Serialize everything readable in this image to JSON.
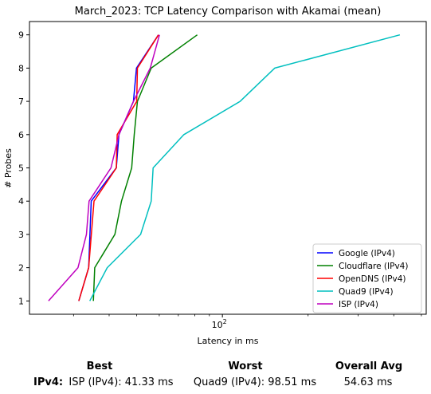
{
  "chart_data": {
    "type": "line",
    "title": "March_2023: TCP Latency Comparison with Akamai (mean)",
    "xlabel": "Latency in ms",
    "ylabel": "# Probes",
    "xscale": "log",
    "xlim": [
      21,
      520
    ],
    "ylim": [
      0.6,
      9.4
    ],
    "xticks": [
      {
        "value": 100,
        "label": "10^2"
      }
    ],
    "yticks": [
      1,
      2,
      3,
      4,
      5,
      6,
      7,
      8,
      9
    ],
    "legend_position": "lower-right",
    "series": [
      {
        "name": "Google (IPv4)",
        "color": "#0000ff",
        "x": [
          31.3,
          33.9,
          34.6,
          42.4,
          43.3,
          48.7,
          49.9,
          59.6
        ],
        "y": [
          1,
          2,
          4,
          5,
          6,
          7,
          8,
          9
        ]
      },
      {
        "name": "Cloudflare (IPv4)",
        "color": "#008000",
        "x": [
          35.2,
          35.6,
          41.9,
          44.2,
          48.0,
          49.0,
          50.3,
          56.2,
          81.6
        ],
        "y": [
          1,
          2,
          3,
          4,
          5,
          6,
          7,
          8,
          9
        ]
      },
      {
        "name": "OpenDNS (IPv4)",
        "color": "#ff0000",
        "x": [
          31.3,
          33.9,
          35.4,
          42.4,
          42.7,
          50.0,
          50.3,
          59.6
        ],
        "y": [
          1,
          2,
          4,
          5,
          6,
          7,
          8,
          9
        ]
      },
      {
        "name": "Quad9 (IPv4)",
        "color": "#00bfbf",
        "x": [
          34.2,
          39.4,
          51.6,
          56.2,
          57.1,
          73.2,
          115.4,
          152.6,
          420.0
        ],
        "y": [
          1,
          2,
          3,
          4,
          5,
          6,
          7,
          8,
          9
        ]
      },
      {
        "name": "ISP (IPv4)",
        "color": "#bf00bf",
        "x": [
          24.5,
          31.1,
          33.3,
          34.0,
          40.6,
          43.3,
          48.7,
          55.8,
          60.1
        ],
        "y": [
          1,
          2,
          3,
          4,
          5,
          6,
          7,
          8,
          9
        ]
      }
    ]
  },
  "summary": {
    "headers": {
      "best": "Best",
      "worst": "Worst",
      "overall": "Overall Avg"
    },
    "row_label": "IPv4",
    "row_sep": ":",
    "best": "ISP (IPv4): 41.33 ms",
    "worst": "Quad9 (IPv4): 98.51 ms",
    "overall": "54.63 ms"
  }
}
